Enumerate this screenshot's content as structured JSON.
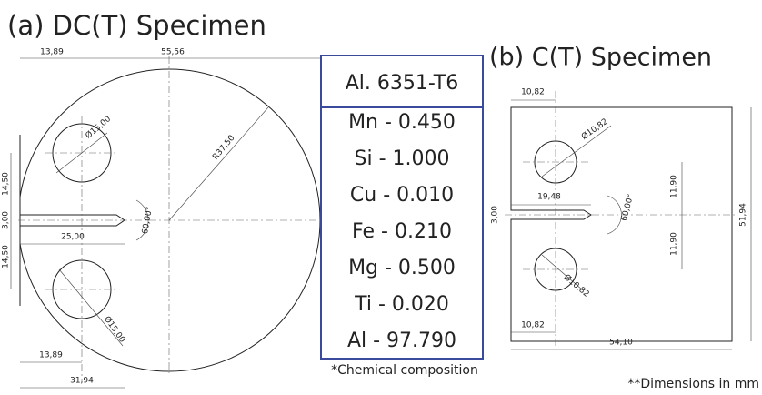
{
  "panel_a": {
    "title": "(a) DC(T) Specimen",
    "dimensions": [
      "13,89",
      "55,56",
      "Ø15,00",
      "R37,50",
      "14,50",
      "3,00",
      "14,50",
      "25,00",
      "60,00°",
      "Ø15,00",
      "13,89",
      "31,94"
    ]
  },
  "material": {
    "title": "Al. 6351-T6",
    "composition": [
      "Mn - 0.450",
      "Si - 1.000",
      "Cu - 0.010",
      "Fe - 0.210",
      "Mg - 0.500",
      "Ti - 0.020",
      "Al - 97.790"
    ],
    "note": "*Chemical composition"
  },
  "panel_b": {
    "title": "(b) C(T) Specimen",
    "dimensions": [
      "10,82",
      "Ø10,82",
      "19,48",
      "3,00",
      "60,00°",
      "11,90",
      "11,90",
      "51,94",
      "Ø10,82",
      "10,82",
      "54,10"
    ],
    "note": "**Dimensions in mm"
  }
}
